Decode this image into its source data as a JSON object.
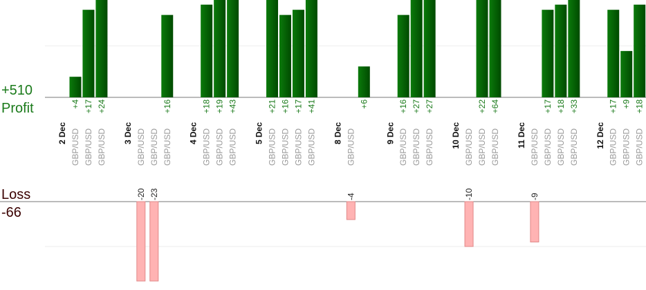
{
  "chart_data": {
    "type": "profit-loss-bars",
    "profit_label": "Profit",
    "profit_total": "+510",
    "loss_label": "Loss",
    "loss_total": "-66",
    "profit_ylim": [
      0,
      18.9
    ],
    "profit_grid": [
      10
    ],
    "loss_ylim": [
      -17.7,
      0
    ],
    "loss_grid": [
      -10
    ],
    "profit_color": "#006400",
    "loss_color": "#ffb3b3",
    "groups": [
      {
        "date": "2 Dec",
        "pairs": [
          "GBP/USD",
          "GBP/USD",
          "GBP/USD"
        ],
        "values": [
          4,
          17,
          24
        ],
        "value_labels": [
          "+4",
          "+17",
          "+24"
        ]
      },
      {
        "date": "3 Dec",
        "pairs": [
          "GBP/USD",
          "GBP/USD",
          "GBP/USD"
        ],
        "values": [
          -20,
          -23,
          16
        ],
        "value_labels": [
          "-20",
          "-23",
          "+16"
        ]
      },
      {
        "date": "4 Dec",
        "pairs": [
          "GBP/USD",
          "GBP/USD",
          "GBP/USD"
        ],
        "values": [
          18,
          19,
          43
        ],
        "value_labels": [
          "+18",
          "+19",
          "+43"
        ]
      },
      {
        "date": "5 Dec",
        "pairs": [
          "GBP/USD",
          "GBP/USD",
          "GBP/USD",
          "GBP/USD"
        ],
        "values": [
          21,
          16,
          17,
          41
        ],
        "value_labels": [
          "+21",
          "+16",
          "+17",
          "+41"
        ]
      },
      {
        "date": "8 Dec",
        "pairs": [
          "GBP/USD",
          null
        ],
        "values": [
          -4,
          6
        ],
        "value_labels": [
          "-4",
          "+6"
        ]
      },
      {
        "date": "9 Dec",
        "pairs": [
          "GBP/USD",
          "GBP/USD",
          "GBP/USD"
        ],
        "values": [
          16,
          27,
          27
        ],
        "value_labels": [
          "+16",
          "+27",
          "+27"
        ]
      },
      {
        "date": "10 Dec",
        "pairs": [
          "GBP/USD",
          "GBP/USD",
          "GBP/USD"
        ],
        "values": [
          -10,
          22,
          64
        ],
        "value_labels": [
          "-10",
          "+22",
          "+64"
        ]
      },
      {
        "date": "11 Dec",
        "pairs": [
          "GBP/USD",
          "GBP/USD",
          "GBP/USD",
          "GBP/USD"
        ],
        "values": [
          -9,
          17,
          18,
          33
        ],
        "value_labels": [
          "-9",
          "+17",
          "+18",
          "+33"
        ]
      },
      {
        "date": "12 Dec",
        "pairs": [
          "GBP/USD",
          "GBP/USD",
          "GBP/USD"
        ],
        "values": [
          17,
          9,
          18
        ],
        "value_labels": [
          "+17",
          "+9",
          "+18"
        ]
      }
    ]
  }
}
